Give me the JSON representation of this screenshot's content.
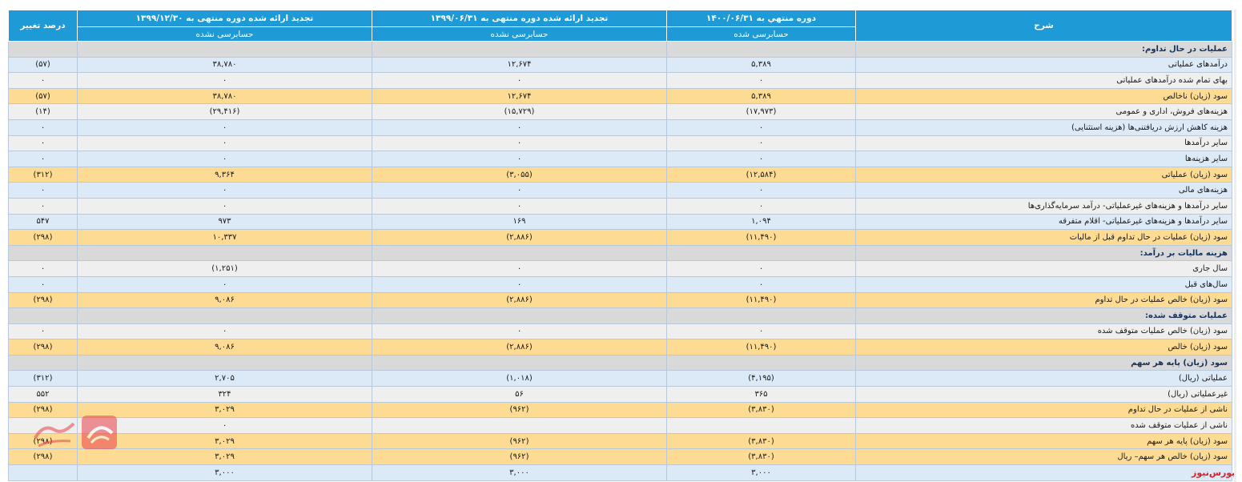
{
  "header": {
    "desc": "شرح",
    "col1": "دوره منتهي به ۱۴۰۰/۰۶/۳۱",
    "col2": "تجدید ارائه شده دوره منتهی به ۱۳۹۹/۰۶/۳۱",
    "col3": "تجدید ارائه شده دوره منتهی به ۱۳۹۹/۱۲/۳۰",
    "pct": "درصد تغییر",
    "col1_sub": "حسابرسی شده",
    "col2_sub": "حسابرسی نشده",
    "col3_sub": "حسابرسی نشده"
  },
  "rows": [
    {
      "label": "عملیات در حال تداوم:",
      "section": true,
      "values": [
        "",
        "",
        "",
        ""
      ]
    },
    {
      "label": "درآمدهای عملیاتی",
      "style": "blue",
      "values": [
        "۵,۳۸۹",
        "۱۲,۶۷۴",
        "۳۸,۷۸۰",
        "(۵۷)"
      ]
    },
    {
      "label": "بهای تمام شده درآمدهای عملیاتی",
      "style": "gray",
      "values": [
        "۰",
        "۰",
        "۰",
        "۰"
      ]
    },
    {
      "label": "سود (زیان) ناخالص",
      "style": "yellow",
      "values": [
        "۵,۳۸۹",
        "۱۲,۶۷۴",
        "۳۸,۷۸۰",
        "(۵۷)"
      ]
    },
    {
      "label": "هزینه‌های فروش، اداری و عمومی",
      "style": "gray",
      "values": [
        "(۱۷,۹۷۳)",
        "(۱۵,۷۲۹)",
        "(۲۹,۴۱۶)",
        "(۱۴)"
      ]
    },
    {
      "label": "هزینه کاهش ارزش دریافتنی‌ها (هزینه استثنایی)",
      "style": "blue",
      "values": [
        "۰",
        "۰",
        "۰",
        "۰"
      ]
    },
    {
      "label": "سایر درآمدها",
      "style": "gray",
      "values": [
        "۰",
        "۰",
        "۰",
        "۰"
      ]
    },
    {
      "label": "سایر هزینه‌ها",
      "style": "blue",
      "values": [
        "۰",
        "۰",
        "۰",
        "۰"
      ]
    },
    {
      "label": "سود (زیان) عملیاتی",
      "style": "yellow",
      "values": [
        "(۱۲,۵۸۴)",
        "(۳,۰۵۵)",
        "۹,۳۶۴",
        "(۳۱۲)"
      ]
    },
    {
      "label": "هزینه‌های مالی",
      "style": "blue",
      "values": [
        "۰",
        "۰",
        "۰",
        "۰"
      ]
    },
    {
      "label": "سایر درآمدها و هزینه‌های غیرعملیاتی- درآمد سرمایه‌گذاری‌ها",
      "style": "gray",
      "values": [
        "۰",
        "۰",
        "۰",
        "۰"
      ]
    },
    {
      "label": "سایر درآمدها و هزینه‌های غیرعملیاتی- اقلام متفرقه",
      "style": "blue",
      "values": [
        "۱,۰۹۴",
        "۱۶۹",
        "۹۷۳",
        "۵۴۷"
      ]
    },
    {
      "label": "سود (زیان) عملیات در حال تداوم قبل از مالیات",
      "style": "yellow",
      "values": [
        "(۱۱,۴۹۰)",
        "(۲,۸۸۶)",
        "۱۰,۳۳۷",
        "(۲۹۸)"
      ]
    },
    {
      "label": "هزینه مالیات بر درآمد:",
      "section": true,
      "values": [
        "",
        "",
        "",
        ""
      ]
    },
    {
      "label": "سال جاری",
      "style": "gray",
      "values": [
        "۰",
        "۰",
        "(۱,۲۵۱)",
        "۰"
      ]
    },
    {
      "label": "سال‌های قبل",
      "style": "blue",
      "values": [
        "۰",
        "۰",
        "۰",
        "۰"
      ]
    },
    {
      "label": "سود (زیان) خالص عملیات در حال تداوم",
      "style": "yellow",
      "values": [
        "(۱۱,۴۹۰)",
        "(۲,۸۸۶)",
        "۹,۰۸۶",
        "(۲۹۸)"
      ]
    },
    {
      "label": "عملیات متوقف شده:",
      "section": true,
      "values": [
        "",
        "",
        "",
        ""
      ]
    },
    {
      "label": "سود (زیان) خالص عملیات متوقف شده",
      "style": "gray",
      "values": [
        "۰",
        "۰",
        "۰",
        "۰"
      ]
    },
    {
      "label": "سود (زیان) خالص",
      "style": "yellow",
      "values": [
        "(۱۱,۴۹۰)",
        "(۲,۸۸۶)",
        "۹,۰۸۶",
        "(۲۹۸)"
      ]
    },
    {
      "label": "سود (زیان) پایه هر سهم",
      "section": true,
      "values": [
        "",
        "",
        "",
        ""
      ]
    },
    {
      "label": "عملیاتی (ریال)",
      "style": "blue",
      "values": [
        "(۴,۱۹۵)",
        "(۱,۰۱۸)",
        "۲,۷۰۵",
        "(۳۱۲)"
      ]
    },
    {
      "label": "غیرعملیاتی (ریال)",
      "style": "gray",
      "values": [
        "۳۶۵",
        "۵۶",
        "۳۲۴",
        "۵۵۲"
      ]
    },
    {
      "label": "ناشی از عملیات در حال تداوم",
      "style": "yellow",
      "values": [
        "(۳,۸۳۰)",
        "(۹۶۲)",
        "۳,۰۲۹",
        "(۲۹۸)"
      ]
    },
    {
      "label": "ناشی از عملیات متوقف شده",
      "style": "gray",
      "values": [
        "",
        "",
        "۰",
        ""
      ]
    },
    {
      "label": "سود (زیان) پایه هر سهم",
      "style": "yellow",
      "values": [
        "(۳,۸۳۰)",
        "(۹۶۲)",
        "۳,۰۲۹",
        "(۲۹۸)"
      ]
    },
    {
      "label": "سود (زیان) خالص هر سهم– ریال",
      "style": "yellow",
      "values": [
        "(۳,۸۳۰)",
        "(۹۶۲)",
        "۳,۰۲۹",
        "(۲۹۸)"
      ]
    },
    {
      "label": "",
      "style": "blue",
      "values": [
        "۳,۰۰۰",
        "۳,۰۰۰",
        "۳,۰۰۰",
        ""
      ]
    }
  ],
  "brand_text": "بورس‌نیوز",
  "colors": {
    "header": "#1e9bd7",
    "section": "#d9d9d9",
    "blue_row": "#dce9f7",
    "gray_row": "#efefef",
    "yellow_row": "#fddb93",
    "negative": "#e31b23"
  },
  "icons": {
    "watermark": "bourse-news-logo"
  }
}
